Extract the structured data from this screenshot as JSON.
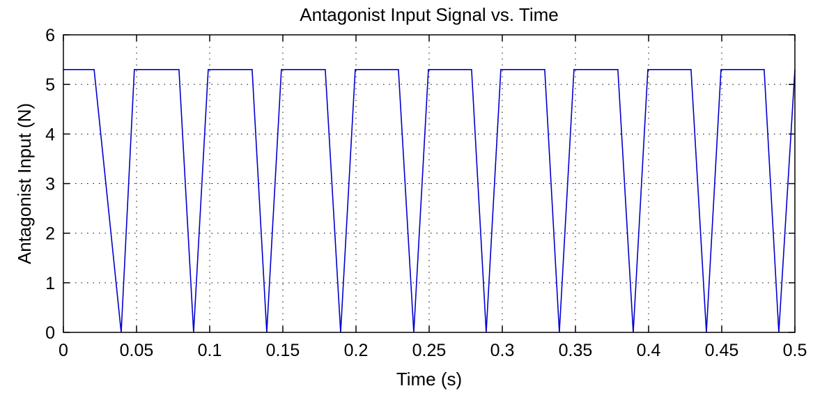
{
  "chart_data": {
    "type": "line",
    "title": "Antagonist Input Signal vs. Time",
    "xlabel": "Time (s)",
    "ylabel": "Antagonist Input (N)",
    "xlim": [
      0,
      0.5
    ],
    "ylim": [
      0,
      6
    ],
    "xticks": [
      0,
      0.05,
      0.1,
      0.15,
      0.2,
      0.25,
      0.3,
      0.35,
      0.4,
      0.45,
      0.5
    ],
    "xtick_labels": [
      "0",
      "0.05",
      "0.1",
      "0.15",
      "0.2",
      "0.25",
      "0.3",
      "0.35",
      "0.4",
      "0.45",
      "0.5"
    ],
    "yticks": [
      0,
      1,
      2,
      3,
      4,
      5,
      6
    ],
    "ytick_labels": [
      "0",
      "1",
      "2",
      "3",
      "4",
      "5",
      "6"
    ],
    "grid": true,
    "line_color": "#0000cc",
    "series": [
      {
        "x": [
          0,
          0.021,
          0.0395,
          0.0485,
          0.079,
          0.089,
          0.099,
          0.129,
          0.139,
          0.149,
          0.179,
          0.1895,
          0.1995,
          0.229,
          0.2395,
          0.2495,
          0.279,
          0.289,
          0.299,
          0.329,
          0.339,
          0.349,
          0.379,
          0.3895,
          0.3995,
          0.429,
          0.4395,
          0.4495,
          0.479,
          0.489,
          0.5
        ],
        "y": [
          5.3,
          5.3,
          0,
          5.3,
          5.3,
          0,
          5.3,
          5.3,
          0,
          5.3,
          5.3,
          0,
          5.3,
          5.3,
          0,
          5.3,
          5.3,
          0,
          5.3,
          5.3,
          0,
          5.3,
          5.3,
          0,
          5.3,
          5.3,
          0,
          5.3,
          5.3,
          0,
          5.3
        ]
      }
    ]
  }
}
